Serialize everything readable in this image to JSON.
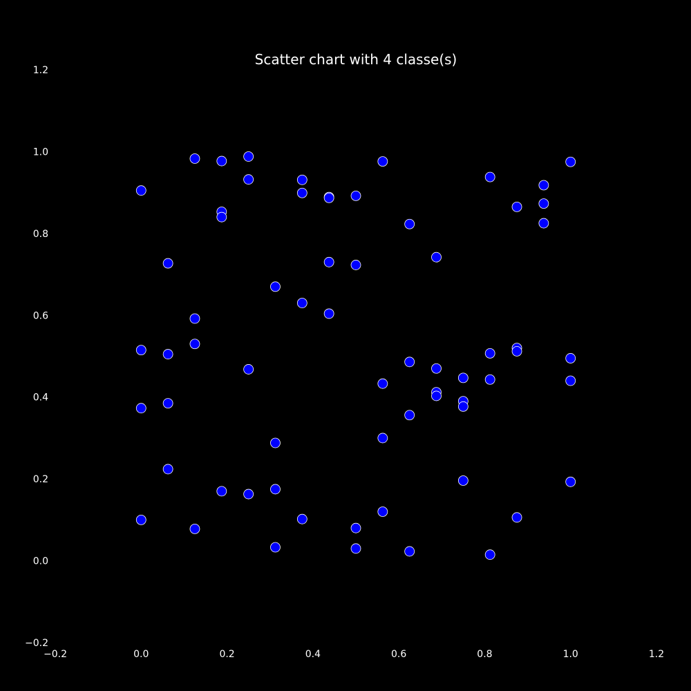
{
  "chart_data": {
    "type": "scatter",
    "title": "Scatter chart with 4 classe(s)",
    "xlabel": "",
    "ylabel": "",
    "xlim": [
      -0.2,
      1.2
    ],
    "ylim": [
      -0.2,
      1.2
    ],
    "x_ticks": [
      "−0.2",
      "0.0",
      "0.2",
      "0.4",
      "0.6",
      "0.8",
      "1.0",
      "1.2"
    ],
    "x_tick_values": [
      -0.2,
      0.0,
      0.2,
      0.4,
      0.6,
      0.8,
      1.0,
      1.2
    ],
    "y_ticks": [
      "−0.2",
      "0.0",
      "0.2",
      "0.4",
      "0.6",
      "0.8",
      "1.0",
      "1.2"
    ],
    "y_tick_values": [
      -0.2,
      0.0,
      0.2,
      0.4,
      0.6,
      0.8,
      1.0,
      1.2
    ],
    "grid": false,
    "legend": "none",
    "colors": {
      "background": "#000000",
      "text": "#ffffff",
      "marker_fill": "#0000ff",
      "marker_edge": "#ffffff"
    },
    "points": [
      {
        "x": 0.0,
        "y": 0.905
      },
      {
        "x": 0.0,
        "y": 0.515
      },
      {
        "x": 0.0,
        "y": 0.373
      },
      {
        "x": 0.0,
        "y": 0.1
      },
      {
        "x": 0.0625,
        "y": 0.727
      },
      {
        "x": 0.0625,
        "y": 0.505
      },
      {
        "x": 0.0625,
        "y": 0.385
      },
      {
        "x": 0.0625,
        "y": 0.224
      },
      {
        "x": 0.125,
        "y": 0.983
      },
      {
        "x": 0.125,
        "y": 0.592
      },
      {
        "x": 0.125,
        "y": 0.53
      },
      {
        "x": 0.125,
        "y": 0.078
      },
      {
        "x": 0.1875,
        "y": 0.977
      },
      {
        "x": 0.1875,
        "y": 0.853
      },
      {
        "x": 0.1875,
        "y": 0.84
      },
      {
        "x": 0.1875,
        "y": 0.17
      },
      {
        "x": 0.25,
        "y": 0.988
      },
      {
        "x": 0.25,
        "y": 0.932
      },
      {
        "x": 0.25,
        "y": 0.468
      },
      {
        "x": 0.25,
        "y": 0.163
      },
      {
        "x": 0.3125,
        "y": 0.67
      },
      {
        "x": 0.3125,
        "y": 0.288
      },
      {
        "x": 0.3125,
        "y": 0.175
      },
      {
        "x": 0.3125,
        "y": 0.033
      },
      {
        "x": 0.375,
        "y": 0.931
      },
      {
        "x": 0.375,
        "y": 0.899
      },
      {
        "x": 0.375,
        "y": 0.63
      },
      {
        "x": 0.375,
        "y": 0.102
      },
      {
        "x": 0.4375,
        "y": 0.889
      },
      {
        "x": 0.4375,
        "y": 0.887
      },
      {
        "x": 0.4375,
        "y": 0.73
      },
      {
        "x": 0.4375,
        "y": 0.604
      },
      {
        "x": 0.5,
        "y": 0.892
      },
      {
        "x": 0.5,
        "y": 0.723
      },
      {
        "x": 0.5,
        "y": 0.08
      },
      {
        "x": 0.5,
        "y": 0.03
      },
      {
        "x": 0.5625,
        "y": 0.976
      },
      {
        "x": 0.5625,
        "y": 0.433
      },
      {
        "x": 0.5625,
        "y": 0.3
      },
      {
        "x": 0.5625,
        "y": 0.12
      },
      {
        "x": 0.625,
        "y": 0.823
      },
      {
        "x": 0.625,
        "y": 0.486
      },
      {
        "x": 0.625,
        "y": 0.356
      },
      {
        "x": 0.625,
        "y": 0.023
      },
      {
        "x": 0.6875,
        "y": 0.742
      },
      {
        "x": 0.6875,
        "y": 0.47
      },
      {
        "x": 0.6875,
        "y": 0.412
      },
      {
        "x": 0.6875,
        "y": 0.403
      },
      {
        "x": 0.75,
        "y": 0.447
      },
      {
        "x": 0.75,
        "y": 0.39
      },
      {
        "x": 0.75,
        "y": 0.377
      },
      {
        "x": 0.75,
        "y": 0.196
      },
      {
        "x": 0.8125,
        "y": 0.938
      },
      {
        "x": 0.8125,
        "y": 0.507
      },
      {
        "x": 0.8125,
        "y": 0.443
      },
      {
        "x": 0.8125,
        "y": 0.015
      },
      {
        "x": 0.875,
        "y": 0.865
      },
      {
        "x": 0.875,
        "y": 0.52
      },
      {
        "x": 0.875,
        "y": 0.512
      },
      {
        "x": 0.875,
        "y": 0.106
      },
      {
        "x": 0.9375,
        "y": 0.918
      },
      {
        "x": 0.9375,
        "y": 0.873
      },
      {
        "x": 0.9375,
        "y": 0.825
      },
      {
        "x": 1.0,
        "y": 0.975
      },
      {
        "x": 1.0,
        "y": 0.495
      },
      {
        "x": 1.0,
        "y": 0.44
      },
      {
        "x": 1.0,
        "y": 0.193
      }
    ]
  }
}
